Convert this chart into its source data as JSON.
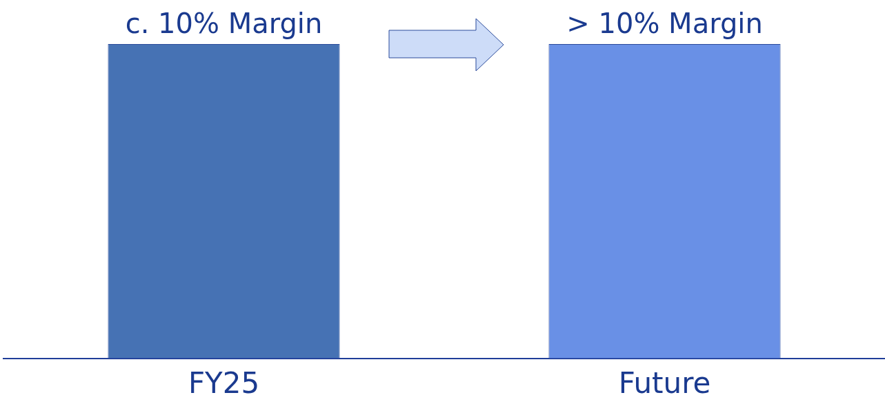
{
  "chart_data": {
    "type": "bar",
    "categories": [
      "FY25",
      "Future"
    ],
    "values": [
      10,
      10
    ],
    "colors": [
      "#4672b4",
      "#6990e6"
    ],
    "value_labels": [
      "c. 10% Margin",
      "> 10% Margin"
    ],
    "ylim": [
      0,
      10
    ],
    "tick_labels": "x",
    "legend": false,
    "grid": false
  }
}
